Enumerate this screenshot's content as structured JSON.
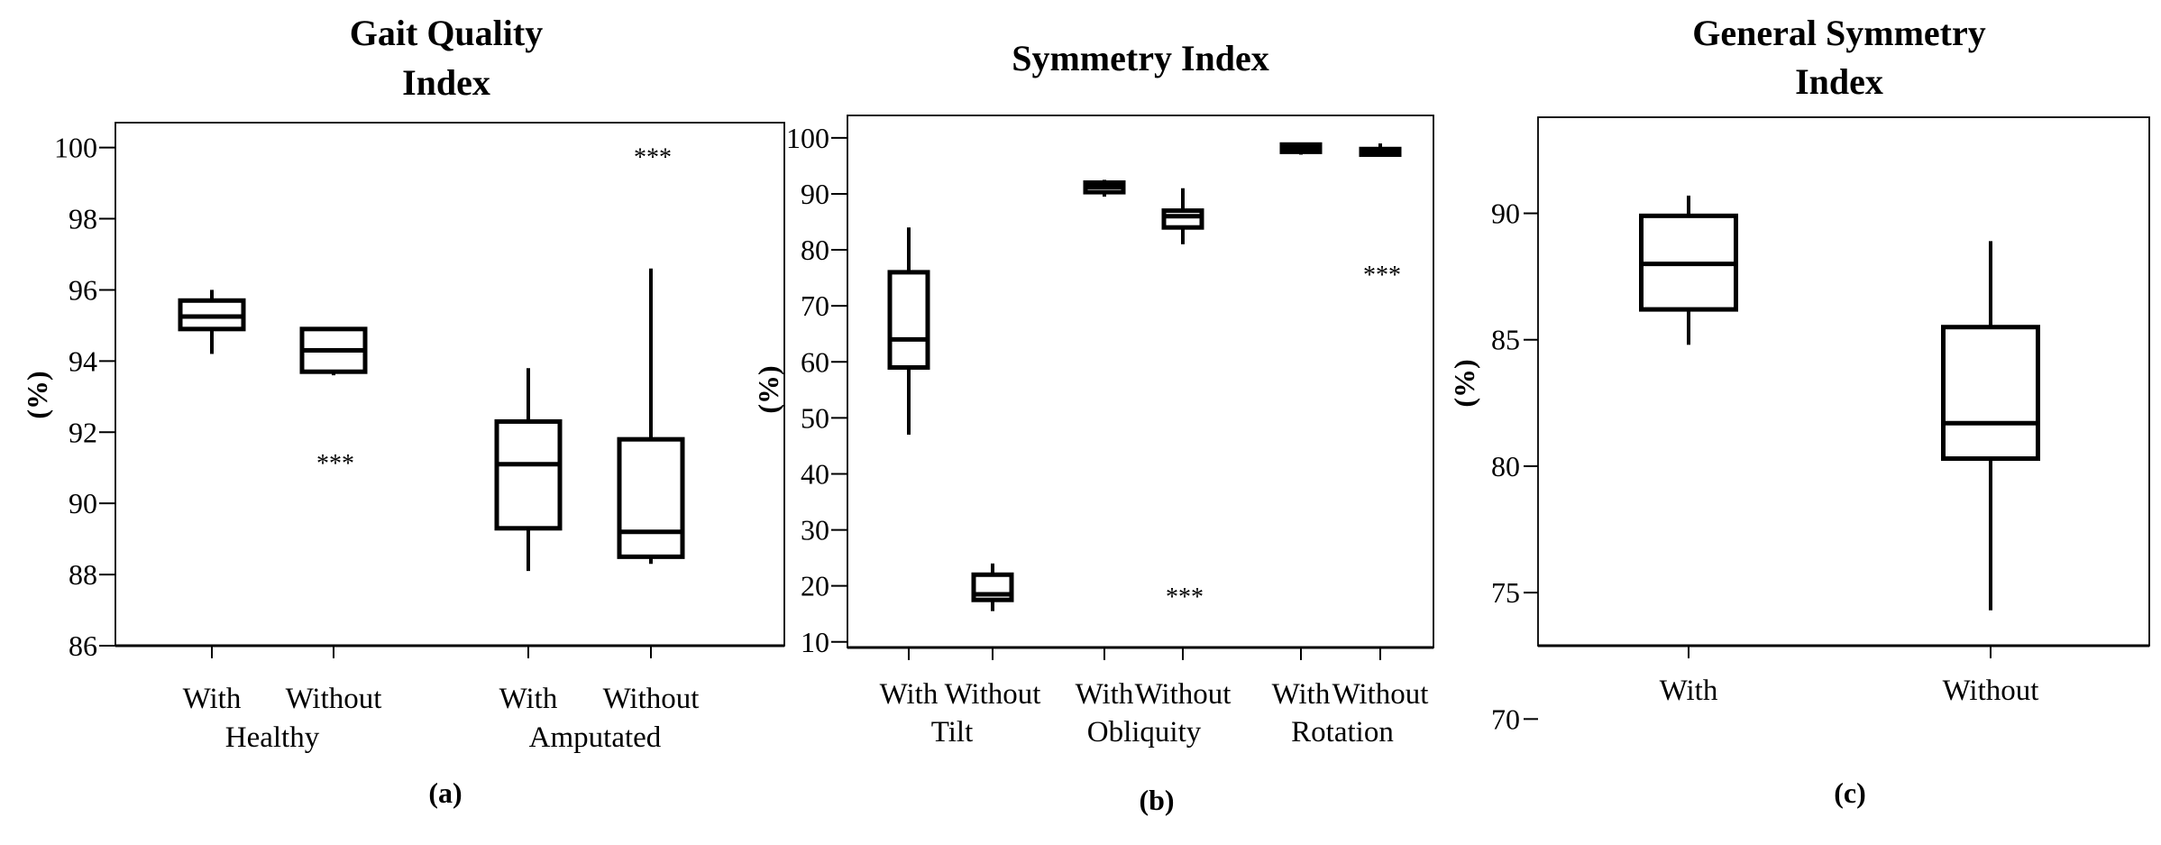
{
  "chart_data": [
    {
      "type": "box",
      "title": [
        "Gait Quality",
        "Index"
      ],
      "ylabel": "(%)",
      "caption": "(a)",
      "yticks": [
        86,
        88,
        90,
        92,
        94,
        96,
        98,
        100
      ],
      "ylim": [
        86,
        100.7
      ],
      "category_labels": [
        "With",
        "Without",
        "With",
        "Without"
      ],
      "group_labels": [
        "Healthy",
        "Amputated"
      ],
      "boxes": [
        {
          "category": "With",
          "group": "Healthy",
          "whisker_low": 94.2,
          "q1": 94.9,
          "median": 95.25,
          "q3": 95.7,
          "whisker_high": 96.0,
          "outliers": []
        },
        {
          "category": "Without",
          "group": "Healthy",
          "whisker_low": 93.6,
          "q1": 93.7,
          "median": 94.3,
          "q3": 94.9,
          "whisker_high": 94.95,
          "outliers": [
            91.2
          ]
        },
        {
          "category": "With",
          "group": "Amputated",
          "whisker_low": 88.1,
          "q1": 89.3,
          "median": 91.1,
          "q3": 92.3,
          "whisker_high": 93.8,
          "outliers": []
        },
        {
          "category": "Without",
          "group": "Amputated",
          "whisker_low": 88.3,
          "q1": 88.5,
          "median": 89.2,
          "q3": 91.8,
          "whisker_high": 96.6,
          "outliers": [
            99.8
          ]
        }
      ]
    },
    {
      "type": "box",
      "title": [
        "Symmetry Index"
      ],
      "ylabel": "(%)",
      "caption": "(b)",
      "yticks": [
        10,
        20,
        30,
        40,
        50,
        60,
        70,
        80,
        90,
        100
      ],
      "ylim": [
        9,
        104
      ],
      "category_labels": [
        "With",
        "Without",
        "With",
        "Without",
        "With",
        "Without"
      ],
      "group_labels": [
        "Tilt",
        "Obliquity",
        "Rotation"
      ],
      "boxes": [
        {
          "category": "With",
          "group": "Tilt",
          "whisker_low": 47,
          "q1": 59,
          "median": 64,
          "q3": 76,
          "whisker_high": 84,
          "outliers": []
        },
        {
          "category": "Without",
          "group": "Tilt",
          "whisker_low": 15.5,
          "q1": 17.5,
          "median": 18.5,
          "q3": 22,
          "whisker_high": 24,
          "outliers": []
        },
        {
          "category": "With",
          "group": "Obliquity",
          "whisker_low": 89.5,
          "q1": 90.3,
          "median": 91.2,
          "q3": 92,
          "whisker_high": 92.5,
          "outliers": []
        },
        {
          "category": "Without",
          "group": "Obliquity",
          "whisker_low": 81,
          "q1": 84,
          "median": 86,
          "q3": 87,
          "whisker_high": 91,
          "outliers": [
            18.5
          ]
        },
        {
          "category": "With",
          "group": "Rotation",
          "whisker_low": 97,
          "q1": 97.5,
          "median": 98.2,
          "q3": 98.8,
          "whisker_high": 99,
          "outliers": []
        },
        {
          "category": "Without",
          "group": "Rotation",
          "whisker_low": 96.8,
          "q1": 97,
          "median": 97.5,
          "q3": 98,
          "whisker_high": 99,
          "outliers": [
            76
          ]
        }
      ]
    },
    {
      "type": "box",
      "title": [
        "General Symmetry",
        "Index"
      ],
      "ylabel": "(%)",
      "caption": "(c)",
      "yticks": [
        70,
        75,
        80,
        85,
        90
      ],
      "ylim": [
        72.9,
        93.8
      ],
      "category_labels": [
        "With",
        "Without"
      ],
      "group_labels": [],
      "boxes": [
        {
          "category": "With",
          "whisker_low": 84.8,
          "q1": 86.2,
          "median": 88.0,
          "q3": 89.9,
          "whisker_high": 90.7,
          "outliers": []
        },
        {
          "category": "Without",
          "whisker_low": 74.3,
          "q1": 80.3,
          "median": 81.7,
          "q3": 85.5,
          "whisker_high": 88.9,
          "outliers": []
        }
      ]
    }
  ],
  "outlier_marker": "***"
}
